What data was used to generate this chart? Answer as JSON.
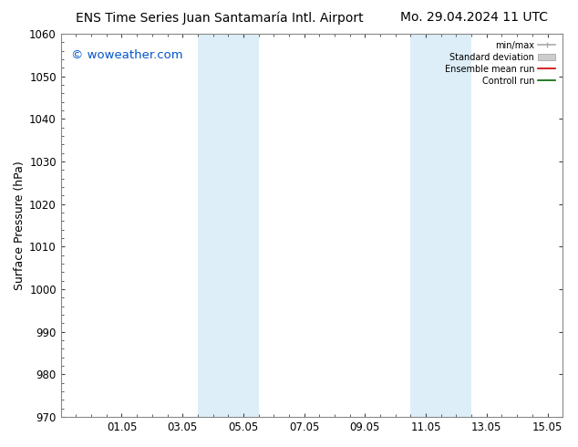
{
  "title_left": "ENS Time Series Juan Santamaría Intl. Airport",
  "title_right": "Mo. 29.04.2024 11 UTC",
  "ylabel": "Surface Pressure (hPa)",
  "watermark": "© woweather.com",
  "watermark_color": "#0055cc",
  "ylim": [
    970,
    1060
  ],
  "yticks": [
    970,
    980,
    990,
    1000,
    1010,
    1020,
    1030,
    1040,
    1050,
    1060
  ],
  "xlim_start": 0,
  "xlim_end": 16.5,
  "xtick_labels": [
    "01.05",
    "03.05",
    "05.05",
    "07.05",
    "09.05",
    "11.05",
    "13.05",
    "15.05"
  ],
  "xtick_positions": [
    2,
    4,
    6,
    8,
    10,
    12,
    14,
    16
  ],
  "shaded_bands": [
    {
      "x_start": 4.5,
      "x_end": 5.5,
      "color": "#ddeef8"
    },
    {
      "x_start": 5.5,
      "x_end": 6.5,
      "color": "#ddeef8"
    },
    {
      "x_start": 11.5,
      "x_end": 12.5,
      "color": "#ddeef8"
    },
    {
      "x_start": 12.5,
      "x_end": 13.5,
      "color": "#ddeef8"
    }
  ],
  "legend_items": [
    {
      "label": "min/max",
      "color": "#aaaaaa",
      "lw": 1.2,
      "style": "minmax"
    },
    {
      "label": "Standard deviation",
      "color": "#cccccc",
      "lw": 6,
      "style": "band"
    },
    {
      "label": "Ensemble mean run",
      "color": "#cc0000",
      "lw": 1.2,
      "style": "line"
    },
    {
      "label": "Controll run",
      "color": "#006600",
      "lw": 1.2,
      "style": "line"
    }
  ],
  "bg_color": "#ffffff",
  "plot_bg_color": "#ffffff",
  "tick_color": "#444444",
  "spine_color": "#888888",
  "tick_label_fontsize": 8.5,
  "axis_label_fontsize": 9,
  "title_fontsize": 10,
  "watermark_fontsize": 9.5
}
